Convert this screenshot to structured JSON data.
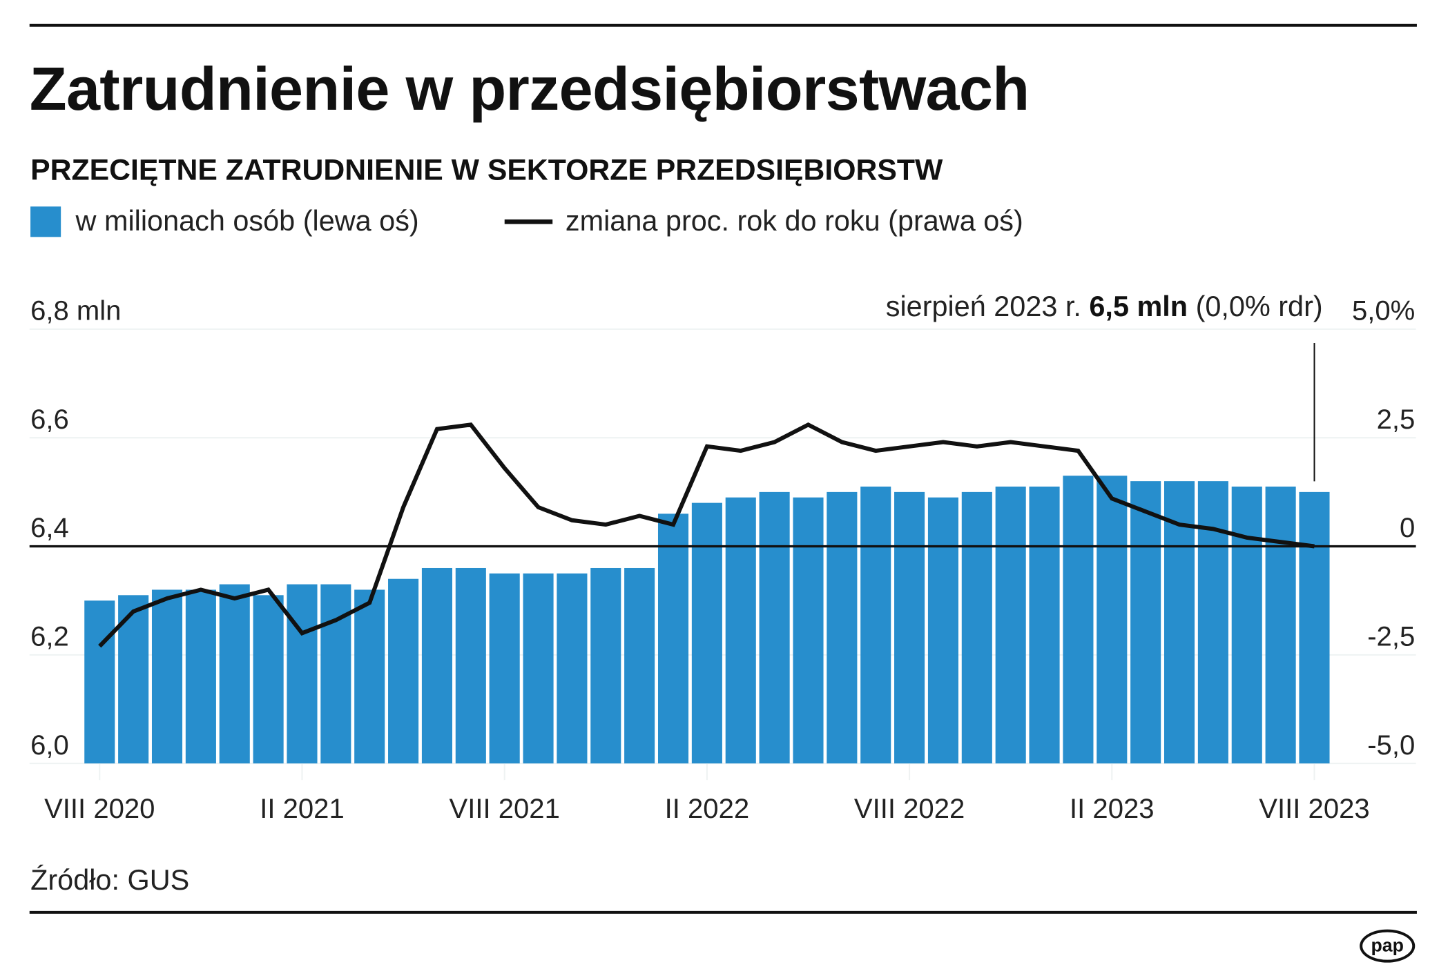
{
  "title": "Zatrudnienie w przedsiębiorstwach",
  "subtitle": "PRZECIĘTNE ZATRUDNIENIE W SEKTORZE PRZEDSIĘBIORSTW",
  "legend": {
    "bars": "w milionach osób (lewa oś)",
    "line": "zmiana proc. rok do roku (prawa oś)"
  },
  "annotation": {
    "prefix": "sierpień 2023 r. ",
    "bold": "6,5 mln",
    "suffix": " (0,0% rdr)"
  },
  "source": "Źródło: GUS",
  "logo": "pap",
  "colors": {
    "bars": "#278ecd",
    "line": "#111111",
    "grid": "#eef2f2"
  },
  "chart_data": {
    "type": "bar+line",
    "months": [
      "VIII 2020",
      "IX 2020",
      "X 2020",
      "XI 2020",
      "XII 2020",
      "I 2021",
      "II 2021",
      "III 2021",
      "IV 2021",
      "V 2021",
      "VI 2021",
      "VII 2021",
      "VIII 2021",
      "IX 2021",
      "X 2021",
      "XI 2021",
      "XII 2021",
      "I 2022",
      "II 2022",
      "III 2022",
      "IV 2022",
      "V 2022",
      "VI 2022",
      "VII 2022",
      "VIII 2022",
      "IX 2022",
      "X 2022",
      "XI 2022",
      "XII 2022",
      "I 2023",
      "II 2023",
      "III 2023",
      "IV 2023",
      "V 2023",
      "VI 2023",
      "VII 2023",
      "VIII 2023"
    ],
    "x_tick_labels": [
      {
        "index": 0,
        "label": "VIII 2020"
      },
      {
        "index": 6,
        "label": "II 2021"
      },
      {
        "index": 12,
        "label": "VIII 2021"
      },
      {
        "index": 18,
        "label": "II 2022"
      },
      {
        "index": 24,
        "label": "VIII 2022"
      },
      {
        "index": 30,
        "label": "II 2023"
      },
      {
        "index": 36,
        "label": "VIII 2023"
      }
    ],
    "series": [
      {
        "name": "w milionach osób (lewa oś)",
        "type": "bar",
        "axis": "left",
        "values": [
          6.3,
          6.31,
          6.32,
          6.32,
          6.33,
          6.31,
          6.33,
          6.33,
          6.32,
          6.34,
          6.36,
          6.36,
          6.35,
          6.35,
          6.35,
          6.36,
          6.36,
          6.46,
          6.48,
          6.49,
          6.5,
          6.49,
          6.5,
          6.51,
          6.5,
          6.49,
          6.5,
          6.51,
          6.51,
          6.53,
          6.53,
          6.52,
          6.52,
          6.52,
          6.51,
          6.51,
          6.5
        ]
      },
      {
        "name": "zmiana proc. rok do roku (prawa oś)",
        "type": "line",
        "axis": "right",
        "values": [
          -2.3,
          -1.5,
          -1.2,
          -1.0,
          -1.2,
          -1.0,
          -2.0,
          -1.7,
          -1.3,
          0.9,
          2.7,
          2.8,
          1.8,
          0.9,
          0.6,
          0.5,
          0.7,
          0.5,
          2.3,
          2.2,
          2.4,
          2.8,
          2.4,
          2.2,
          2.3,
          2.4,
          2.3,
          2.4,
          2.3,
          2.2,
          1.1,
          0.8,
          0.5,
          0.4,
          0.2,
          0.1,
          0.0
        ]
      }
    ],
    "left_axis": {
      "ylim": [
        6.0,
        6.8
      ],
      "ticks": [
        {
          "v": 6.0,
          "label": "6,0"
        },
        {
          "v": 6.2,
          "label": "6,2"
        },
        {
          "v": 6.4,
          "label": "6,4"
        },
        {
          "v": 6.6,
          "label": "6,6"
        },
        {
          "v": 6.8,
          "label": "6,8 mln"
        }
      ]
    },
    "right_axis": {
      "ylim": [
        -5.0,
        5.0
      ],
      "ticks": [
        {
          "v": -5.0,
          "label": "-5,0"
        },
        {
          "v": -2.5,
          "label": "-2,5"
        },
        {
          "v": 0,
          "label": "0"
        },
        {
          "v": 2.5,
          "label": "2,5"
        },
        {
          "v": 5.0,
          "label": "5,0%"
        }
      ]
    },
    "grid": true
  }
}
